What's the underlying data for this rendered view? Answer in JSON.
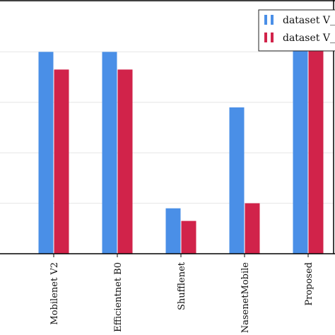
{
  "chart_data": {
    "type": "bar",
    "categories": [
      "Mobilenet V2",
      "Efficientnet B0",
      "Shufflenet",
      "NasenetMobile",
      "Proposed"
    ],
    "series": [
      {
        "name": "dataset V_",
        "color": "#4a8fe7",
        "values": [
          0.8,
          0.8,
          0.18,
          0.58,
          0.81
        ]
      },
      {
        "name": "dataset V_",
        "color": "#d1234a",
        "values": [
          0.73,
          0.73,
          0.13,
          0.2,
          0.81
        ]
      }
    ],
    "ylim": [
      0,
      1
    ],
    "grid": true,
    "legend_position": "top-right"
  }
}
